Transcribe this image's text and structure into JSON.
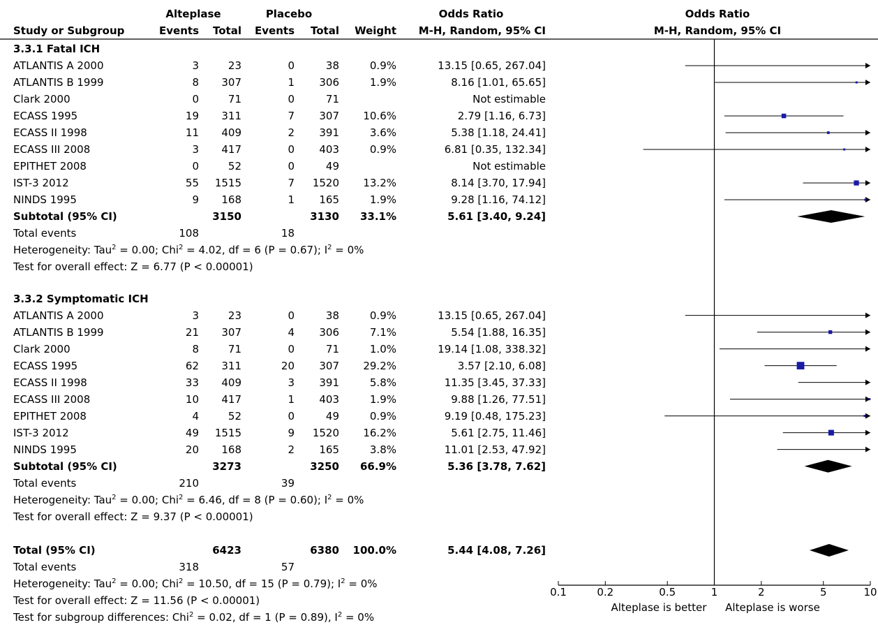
{
  "header": {
    "group1": "Alteplase",
    "group2": "Placebo",
    "or_title": "Odds Ratio",
    "plot_title": "Odds Ratio",
    "col_study": "Study or Subgroup",
    "col_events1": "Events",
    "col_total1": "Total",
    "col_events2": "Events",
    "col_total2": "Total",
    "col_weight": "Weight",
    "col_method": "M-H, Random, 95% CI",
    "plot_method": "M-H, Random, 95% CI"
  },
  "subgroups": [
    {
      "title": "3.3.1 Fatal ICH",
      "studies": [
        {
          "study": "ATLANTIS A 2000",
          "e1": "3",
          "t1": "23",
          "e2": "0",
          "t2": "38",
          "weight": "0.9%",
          "ci": "13.15 [0.65, 267.04]"
        },
        {
          "study": "ATLANTIS B 1999",
          "e1": "8",
          "t1": "307",
          "e2": "1",
          "t2": "306",
          "weight": "1.9%",
          "ci": "8.16 [1.01, 65.65]"
        },
        {
          "study": "Clark 2000",
          "e1": "0",
          "t1": "71",
          "e2": "0",
          "t2": "71",
          "weight": "",
          "ci": "Not estimable"
        },
        {
          "study": "ECASS 1995",
          "e1": "19",
          "t1": "311",
          "e2": "7",
          "t2": "307",
          "weight": "10.6%",
          "ci": "2.79 [1.16, 6.73]"
        },
        {
          "study": "ECASS II 1998",
          "e1": "11",
          "t1": "409",
          "e2": "2",
          "t2": "391",
          "weight": "3.6%",
          "ci": "5.38 [1.18, 24.41]"
        },
        {
          "study": "ECASS III 2008",
          "e1": "3",
          "t1": "417",
          "e2": "0",
          "t2": "403",
          "weight": "0.9%",
          "ci": "6.81 [0.35, 132.34]"
        },
        {
          "study": "EPITHET 2008",
          "e1": "0",
          "t1": "52",
          "e2": "0",
          "t2": "49",
          "weight": "",
          "ci": "Not estimable"
        },
        {
          "study": "IST-3 2012",
          "e1": "55",
          "t1": "1515",
          "e2": "7",
          "t2": "1520",
          "weight": "13.2%",
          "ci": "8.14 [3.70, 17.94]"
        },
        {
          "study": "NINDS 1995",
          "e1": "9",
          "t1": "168",
          "e2": "1",
          "t2": "165",
          "weight": "1.9%",
          "ci": "9.28 [1.16, 74.12]"
        }
      ],
      "subtotal": {
        "label": "Subtotal (95% CI)",
        "t1": "3150",
        "t2": "3130",
        "weight": "33.1%",
        "ci": "5.61 [3.40, 9.24]"
      },
      "total_events": {
        "label": "Total events",
        "e1": "108",
        "e2": "18"
      },
      "heterogeneity": "Heterogeneity: Tau² = 0.00; Chi² = 4.02, df = 6 (P = 0.67); I² = 0%",
      "overall": "Test for overall effect: Z = 6.77 (P < 0.00001)"
    },
    {
      "title": "3.3.2 Symptomatic ICH",
      "studies": [
        {
          "study": "ATLANTIS A 2000",
          "e1": "3",
          "t1": "23",
          "e2": "0",
          "t2": "38",
          "weight": "0.9%",
          "ci": "13.15 [0.65, 267.04]"
        },
        {
          "study": "ATLANTIS B 1999",
          "e1": "21",
          "t1": "307",
          "e2": "4",
          "t2": "306",
          "weight": "7.1%",
          "ci": "5.54 [1.88, 16.35]"
        },
        {
          "study": "Clark 2000",
          "e1": "8",
          "t1": "71",
          "e2": "0",
          "t2": "71",
          "weight": "1.0%",
          "ci": "19.14 [1.08, 338.32]"
        },
        {
          "study": "ECASS 1995",
          "e1": "62",
          "t1": "311",
          "e2": "20",
          "t2": "307",
          "weight": "29.2%",
          "ci": "3.57 [2.10, 6.08]"
        },
        {
          "study": "ECASS II 1998",
          "e1": "33",
          "t1": "409",
          "e2": "3",
          "t2": "391",
          "weight": "5.8%",
          "ci": "11.35 [3.45, 37.33]"
        },
        {
          "study": "ECASS III 2008",
          "e1": "10",
          "t1": "417",
          "e2": "1",
          "t2": "403",
          "weight": "1.9%",
          "ci": "9.88 [1.26, 77.51]"
        },
        {
          "study": "EPITHET 2008",
          "e1": "4",
          "t1": "52",
          "e2": "0",
          "t2": "49",
          "weight": "0.9%",
          "ci": "9.19 [0.48, 175.23]"
        },
        {
          "study": "IST-3 2012",
          "e1": "49",
          "t1": "1515",
          "e2": "9",
          "t2": "1520",
          "weight": "16.2%",
          "ci": "5.61 [2.75, 11.46]"
        },
        {
          "study": "NINDS 1995",
          "e1": "20",
          "t1": "168",
          "e2": "2",
          "t2": "165",
          "weight": "3.8%",
          "ci": "11.01 [2.53, 47.92]"
        }
      ],
      "subtotal": {
        "label": "Subtotal (95% CI)",
        "t1": "3273",
        "t2": "3250",
        "weight": "66.9%",
        "ci": "5.36 [3.78, 7.62]"
      },
      "total_events": {
        "label": "Total events",
        "e1": "210",
        "e2": "39"
      },
      "heterogeneity": "Heterogeneity: Tau² = 0.00; Chi² = 6.46, df = 8 (P = 0.60); I² = 0%",
      "overall": "Test for overall effect: Z = 9.37 (P < 0.00001)"
    }
  ],
  "total": {
    "label": "Total (95% CI)",
    "t1": "6423",
    "t2": "6380",
    "weight": "100.0%",
    "ci": "5.44 [4.08, 7.26]",
    "events_label": "Total events",
    "e1": "318",
    "e2": "57",
    "heterogeneity": "Heterogeneity: Tau² = 0.00; Chi² = 10.50, df = 15 (P = 0.79); I² = 0%",
    "overall": "Test for overall effect: Z = 11.56 (P < 0.00001)",
    "subgroup_diff": "Test for subgroup differences: Chi² = 0.02, df = 1 (P = 0.89), I² = 0%"
  },
  "axis": {
    "ticks": [
      "0.1",
      "0.2",
      "0.5",
      "1",
      "2",
      "5",
      "10"
    ],
    "favours_left": "Alteplase is better",
    "favours_right": "Alteplase is worse"
  },
  "colors": {
    "square": "#1a1aa8",
    "diamond": "#000000",
    "line": "#000000"
  },
  "chart_data": {
    "type": "forest",
    "x_scale": "log",
    "xlim": [
      0.1,
      10
    ],
    "ticks": [
      0.1,
      0.2,
      0.5,
      1,
      2,
      5,
      10
    ],
    "xlabel_left": "Alteplase is better",
    "xlabel_right": "Alteplase is worse",
    "subgroups": [
      {
        "name": "3.3.1 Fatal ICH",
        "points": [
          {
            "study": "ATLANTIS A 2000",
            "or": 13.15,
            "lo": 0.65,
            "hi": 267.04,
            "weight": 0.9
          },
          {
            "study": "ATLANTIS B 1999",
            "or": 8.16,
            "lo": 1.01,
            "hi": 65.65,
            "weight": 1.9
          },
          {
            "study": "Clark 2000",
            "or": null,
            "lo": null,
            "hi": null,
            "weight": null
          },
          {
            "study": "ECASS 1995",
            "or": 2.79,
            "lo": 1.16,
            "hi": 6.73,
            "weight": 10.6
          },
          {
            "study": "ECASS II 1998",
            "or": 5.38,
            "lo": 1.18,
            "hi": 24.41,
            "weight": 3.6
          },
          {
            "study": "ECASS III 2008",
            "or": 6.81,
            "lo": 0.35,
            "hi": 132.34,
            "weight": 0.9
          },
          {
            "study": "EPITHET 2008",
            "or": null,
            "lo": null,
            "hi": null,
            "weight": null
          },
          {
            "study": "IST-3 2012",
            "or": 8.14,
            "lo": 3.7,
            "hi": 17.94,
            "weight": 13.2
          },
          {
            "study": "NINDS 1995",
            "or": 9.28,
            "lo": 1.16,
            "hi": 74.12,
            "weight": 1.9
          }
        ],
        "subtotal": {
          "or": 5.61,
          "lo": 3.4,
          "hi": 9.24,
          "weight": 33.1
        }
      },
      {
        "name": "3.3.2 Symptomatic ICH",
        "points": [
          {
            "study": "ATLANTIS A 2000",
            "or": 13.15,
            "lo": 0.65,
            "hi": 267.04,
            "weight": 0.9
          },
          {
            "study": "ATLANTIS B 1999",
            "or": 5.54,
            "lo": 1.88,
            "hi": 16.35,
            "weight": 7.1
          },
          {
            "study": "Clark 2000",
            "or": 19.14,
            "lo": 1.08,
            "hi": 338.32,
            "weight": 1.0
          },
          {
            "study": "ECASS 1995",
            "or": 3.57,
            "lo": 2.1,
            "hi": 6.08,
            "weight": 29.2
          },
          {
            "study": "ECASS II 1998",
            "or": 11.35,
            "lo": 3.45,
            "hi": 37.33,
            "weight": 5.8
          },
          {
            "study": "ECASS III 2008",
            "or": 9.88,
            "lo": 1.26,
            "hi": 77.51,
            "weight": 1.9
          },
          {
            "study": "EPITHET 2008",
            "or": 9.19,
            "lo": 0.48,
            "hi": 175.23,
            "weight": 0.9
          },
          {
            "study": "IST-3 2012",
            "or": 5.61,
            "lo": 2.75,
            "hi": 11.46,
            "weight": 16.2
          },
          {
            "study": "NINDS 1995",
            "or": 11.01,
            "lo": 2.53,
            "hi": 47.92,
            "weight": 3.8
          }
        ],
        "subtotal": {
          "or": 5.36,
          "lo": 3.78,
          "hi": 7.62,
          "weight": 66.9
        }
      }
    ],
    "overall": {
      "or": 5.44,
      "lo": 4.08,
      "hi": 7.26,
      "weight": 100.0
    }
  }
}
